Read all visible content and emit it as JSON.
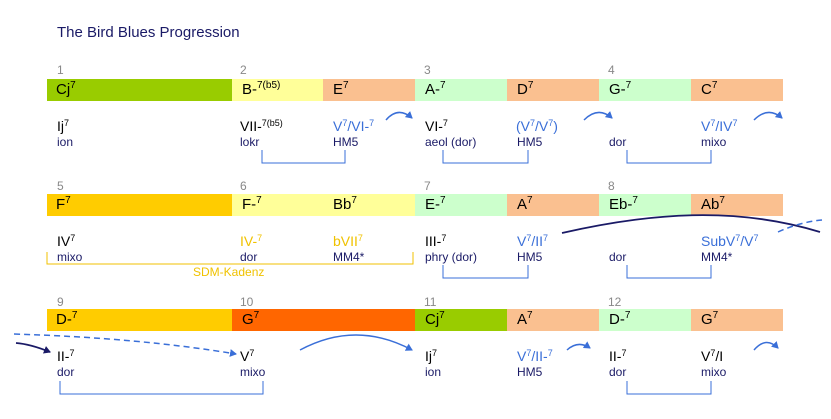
{
  "title": "The Bird Blues Progression",
  "colors": {
    "green_dark": "#99cc00",
    "green_light": "#ccffcc",
    "salmon": "#fac090",
    "yellow_light": "#ffff99",
    "gold": "#ffcc00",
    "orange": "#ff6600",
    "blue_text": "#3a6fd8",
    "navy": "#1a1a66"
  },
  "rows": [
    {
      "bars": [
        "1",
        "2",
        "3",
        "4"
      ],
      "chords": [
        {
          "root": "Cj",
          "ext": "7"
        },
        {
          "root": "B-",
          "ext": "7(b5)"
        },
        {
          "root": "E",
          "ext": "7"
        },
        {
          "root": "A-",
          "ext": "7"
        },
        {
          "root": "D",
          "ext": "7"
        },
        {
          "root": "G-",
          "ext": "7"
        },
        {
          "root": "C",
          "ext": "7"
        }
      ],
      "degrees": [
        {
          "text": "Ij",
          "ext": "7"
        },
        {
          "text": "VII-",
          "ext": "7(b5)"
        },
        {
          "text": "V",
          "ext": "7",
          "rest": "/VI-",
          "ext2": "7"
        },
        {
          "text": "VI-",
          "ext": "7"
        },
        {
          "text": "(V",
          "ext": "7",
          "rest": "/V",
          "ext2": "7",
          "tail": ")"
        },
        {
          "text": "",
          "ext": ""
        },
        {
          "text": "V",
          "ext": "7",
          "rest": "/IV",
          "ext2": "7"
        }
      ],
      "modes": [
        "ion",
        "lokr",
        "HM5",
        "aeol (dor)",
        "HM5",
        "dor",
        "mixo"
      ]
    },
    {
      "bars": [
        "5",
        "6",
        "7",
        "8"
      ],
      "chords": [
        {
          "root": "F",
          "ext": "7"
        },
        {
          "root": "F-",
          "ext": "7"
        },
        {
          "root": "Bb",
          "ext": "7"
        },
        {
          "root": "E-",
          "ext": "7"
        },
        {
          "root": "A",
          "ext": "7"
        },
        {
          "root": "Eb-",
          "ext": "7"
        },
        {
          "root": "Ab",
          "ext": "7"
        }
      ],
      "degrees": [
        {
          "text": "IV",
          "ext": "7"
        },
        {
          "text": "IV-",
          "ext": "7"
        },
        {
          "text": "bVII",
          "ext": "7"
        },
        {
          "text": "III-",
          "ext": "7"
        },
        {
          "text": "V",
          "ext": "7",
          "rest": "/II",
          "ext2": "7"
        },
        {
          "text": "",
          "ext": ""
        },
        {
          "text": "SubV",
          "ext": "7",
          "rest": "/V",
          "ext2": "7"
        }
      ],
      "modes": [
        "mixo",
        "dor",
        "MM4*",
        "phry (dor)",
        "HM5",
        "dor",
        "MM4*"
      ],
      "sdm_label": "SDM-Kadenz"
    },
    {
      "bars": [
        "9",
        "10",
        "11",
        "12"
      ],
      "chords": [
        {
          "root": "D-",
          "ext": "7"
        },
        {
          "root": "G",
          "ext": "7"
        },
        {
          "root": "Cj",
          "ext": "7"
        },
        {
          "root": "A",
          "ext": "7"
        },
        {
          "root": "D-",
          "ext": "7"
        },
        {
          "root": "G",
          "ext": "7"
        }
      ],
      "degrees": [
        {
          "text": "II-",
          "ext": "7"
        },
        {
          "text": "V",
          "ext": "7"
        },
        {
          "text": "Ij",
          "ext": "7"
        },
        {
          "text": "V",
          "ext": "7",
          "rest": "/II-",
          "ext2": "7"
        },
        {
          "text": "II-",
          "ext": "7"
        },
        {
          "text": "V",
          "ext": "7",
          "rest": "/I",
          "ext2": ""
        }
      ],
      "modes": [
        "dor",
        "mixo",
        "ion",
        "HM5",
        "dor",
        "mixo"
      ]
    }
  ]
}
